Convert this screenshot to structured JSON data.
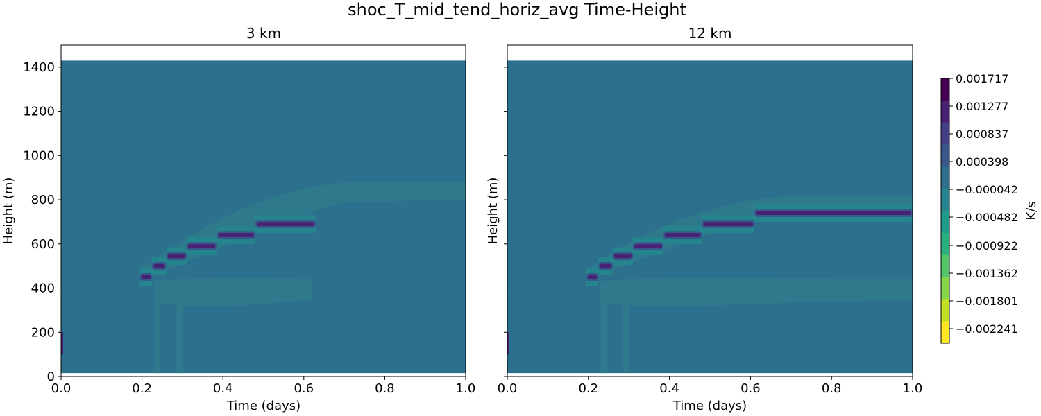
{
  "figure_title": "shoc_T_mid_tend_horiz_avg Time-Height",
  "chart_data": [
    {
      "type": "heatmap",
      "title": "3 km",
      "xlabel": "Time (days)",
      "ylabel": "Height (m)",
      "xlim": [
        0.0,
        1.0
      ],
      "ylim": [
        0,
        1500
      ],
      "data_top": 1430,
      "xticks": [
        "0.0",
        "0.2",
        "0.4",
        "0.6",
        "0.8",
        "1.0"
      ],
      "yticks": [
        "0",
        "200",
        "400",
        "600",
        "800",
        "1000",
        "1200",
        "1400"
      ],
      "background_level": -4.2e-05,
      "staircase": [
        {
          "t0": 0.195,
          "t1": 0.225,
          "h": 450
        },
        {
          "t0": 0.225,
          "t1": 0.26,
          "h": 500
        },
        {
          "t0": 0.26,
          "t1": 0.31,
          "h": 545
        },
        {
          "t0": 0.31,
          "t1": 0.385,
          "h": 590
        },
        {
          "t0": 0.385,
          "t1": 0.48,
          "h": 640
        },
        {
          "t0": 0.48,
          "t1": 0.63,
          "h": 690
        }
      ]
    },
    {
      "type": "heatmap",
      "title": "12 km",
      "xlabel": "Time (days)",
      "ylabel": "Height (m)",
      "xlim": [
        0.0,
        1.0
      ],
      "ylim": [
        0,
        1500
      ],
      "data_top": 1430,
      "xticks": [
        "0.0",
        "0.2",
        "0.4",
        "0.6",
        "0.8",
        "1.0"
      ],
      "yticks": [
        "",
        "",
        "",
        "",
        "",
        "",
        "",
        ""
      ],
      "background_level": -4.2e-05,
      "staircase": [
        {
          "t0": 0.195,
          "t1": 0.225,
          "h": 450
        },
        {
          "t0": 0.225,
          "t1": 0.26,
          "h": 500
        },
        {
          "t0": 0.26,
          "t1": 0.31,
          "h": 545
        },
        {
          "t0": 0.31,
          "t1": 0.385,
          "h": 590
        },
        {
          "t0": 0.385,
          "t1": 0.48,
          "h": 640
        },
        {
          "t0": 0.48,
          "t1": 0.61,
          "h": 690
        },
        {
          "t0": 0.61,
          "t1": 1.0,
          "h": 740
        }
      ]
    }
  ],
  "colorbar": {
    "label": "K/s",
    "levels": [
      "0.001717",
      "0.001277",
      "0.000837",
      "0.000398",
      "−0.000042",
      "−0.000482",
      "−0.000922",
      "−0.001362",
      "−0.001801",
      "−0.002241"
    ],
    "colors": [
      "#440154",
      "#482173",
      "#433e85",
      "#38588c",
      "#2d708e",
      "#25858e",
      "#1e9b8a",
      "#2ab07f",
      "#52c569",
      "#86d549",
      "#c2df23",
      "#fde725"
    ]
  },
  "colors": {
    "background": "#2d708e",
    "band_mild": "#2e7a8c",
    "band_light": "#25858e",
    "band_strong": "#482173",
    "band_mid": "#38588c"
  }
}
